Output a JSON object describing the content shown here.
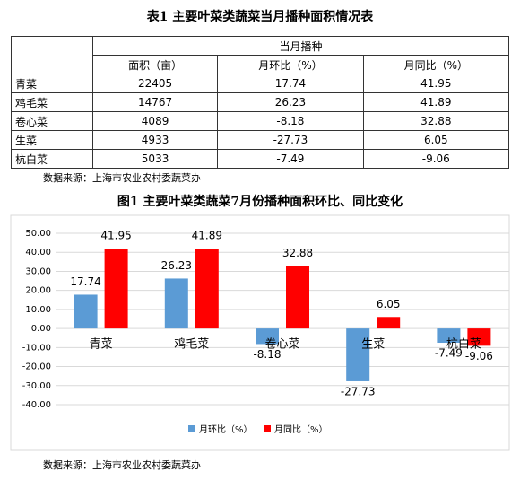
{
  "table": {
    "title": "表1 主要叶菜类蔬菜当月播种面积情况表",
    "group_header": "当月播种",
    "columns": [
      "面积（亩）",
      "月环比（%）",
      "月同比（%）"
    ],
    "rows": [
      [
        "青菜",
        22405,
        17.74,
        41.95
      ],
      [
        "鸡毛菜",
        14767,
        26.23,
        41.89
      ],
      [
        "卷心菜",
        4089,
        -8.18,
        32.88
      ],
      [
        "生菜",
        4933,
        -27.73,
        6.05
      ],
      [
        "杭白菜",
        5033,
        -7.49,
        -9.06
      ]
    ],
    "source": "数据来源：上海市农业农村委蔬菜办"
  },
  "chart_data": {
    "type": "bar",
    "title": "图1 主要叶菜类蔬菜7月份播种面积环比、同比变化",
    "categories": [
      "青菜",
      "鸡毛菜",
      "卷心菜",
      "生菜",
      "杭白菜"
    ],
    "series": [
      {
        "name": "月环比（%）",
        "color": "#5b9bd5",
        "values": [
          17.74,
          26.23,
          -8.18,
          -27.73,
          -7.49
        ]
      },
      {
        "name": "月同比（%）",
        "color": "#ff0000",
        "values": [
          41.95,
          41.89,
          32.88,
          6.05,
          -9.06
        ]
      }
    ],
    "ylim": [
      -40,
      50
    ],
    "yticks": [
      {
        "value": -40,
        "label": "-40.00"
      },
      {
        "value": -30,
        "label": "-30.00"
      },
      {
        "value": -20,
        "label": "-20.00"
      },
      {
        "value": -10,
        "label": "-10.00"
      },
      {
        "value": 0,
        "label": "0.00"
      },
      {
        "value": 10,
        "label": "10.00"
      },
      {
        "value": 20,
        "label": "20.00"
      },
      {
        "value": 30,
        "label": "30.00"
      },
      {
        "value": 40,
        "label": "40.00"
      },
      {
        "value": 50,
        "label": "50.00"
      }
    ],
    "grid": true,
    "legend": "bottom",
    "source": "数据来源：上海市农业农村委蔬菜办"
  }
}
